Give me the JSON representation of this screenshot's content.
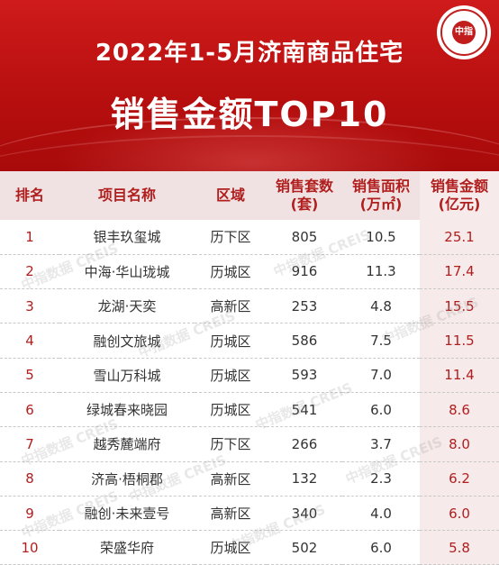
{
  "header": {
    "title_line1": "2022年1-5月济南商品住宅",
    "title_line2": "销售金额TOP10",
    "seal_text": "中指"
  },
  "table": {
    "columns": [
      "排名",
      "项目名称",
      "区域",
      "销售套数\n(套)",
      "销售面积\n(万㎡)",
      "销售金额\n(亿元)"
    ],
    "rows": [
      {
        "rank": "1",
        "name": "银丰玖玺城",
        "district": "历下区",
        "units": "805",
        "area": "10.5",
        "amount": "25.1"
      },
      {
        "rank": "2",
        "name": "中海·华山珑城",
        "district": "历城区",
        "units": "916",
        "area": "11.3",
        "amount": "17.4"
      },
      {
        "rank": "3",
        "name": "龙湖·天奕",
        "district": "高新区",
        "units": "253",
        "area": "4.8",
        "amount": "15.5"
      },
      {
        "rank": "4",
        "name": "融创文旅城",
        "district": "历城区",
        "units": "586",
        "area": "7.5",
        "amount": "11.5"
      },
      {
        "rank": "5",
        "name": "雪山万科城",
        "district": "历城区",
        "units": "593",
        "area": "7.0",
        "amount": "11.4"
      },
      {
        "rank": "6",
        "name": "绿城春来晓园",
        "district": "历城区",
        "units": "541",
        "area": "6.0",
        "amount": "8.6"
      },
      {
        "rank": "7",
        "name": "越秀麓端府",
        "district": "历下区",
        "units": "266",
        "area": "3.7",
        "amount": "8.0"
      },
      {
        "rank": "8",
        "name": "济高·梧桐郡",
        "district": "高新区",
        "units": "132",
        "area": "2.3",
        "amount": "6.2"
      },
      {
        "rank": "9",
        "name": "融创·未来壹号",
        "district": "高新区",
        "units": "340",
        "area": "4.0",
        "amount": "6.0"
      },
      {
        "rank": "10",
        "name": "荣盛华府",
        "district": "历城区",
        "units": "502",
        "area": "6.0",
        "amount": "5.8"
      }
    ]
  },
  "watermark": {
    "text": "中指数据 CREIS"
  },
  "colors": {
    "header_red": "#c41414",
    "accent_text": "#b01e1e",
    "header_row_bg": "#f0e2e2",
    "amount_col_bg": "#f7eaea"
  }
}
